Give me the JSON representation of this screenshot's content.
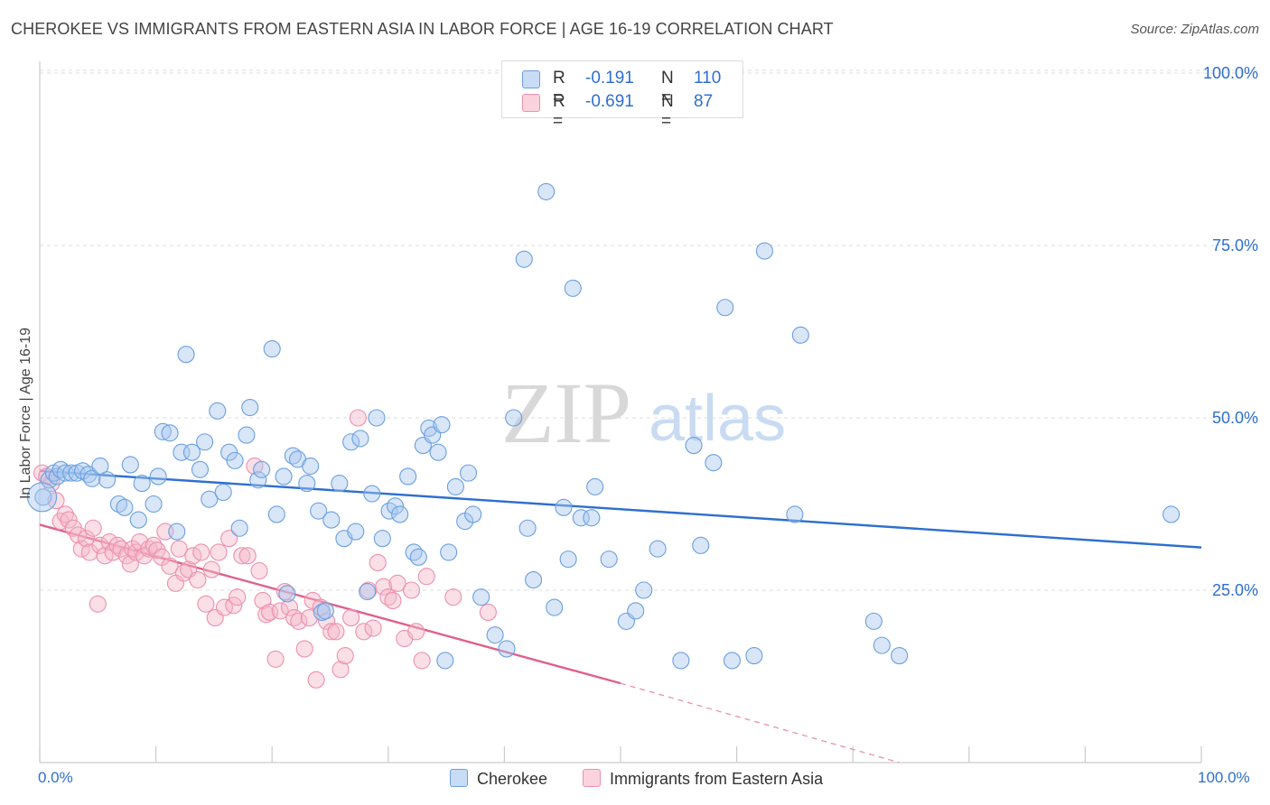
{
  "header": {
    "title": "CHEROKEE VS IMMIGRANTS FROM EASTERN ASIA IN LABOR FORCE | AGE 16-19 CORRELATION CHART",
    "source": "Source: ZipAtlas.com"
  },
  "watermark": {
    "zip": "ZIP",
    "atlas": "atlas"
  },
  "legend": {
    "rows": [
      {
        "r_label": "R =",
        "r_value": "-0.191",
        "n_label": "N =",
        "n_value": "110",
        "color": "#a9c8f0"
      },
      {
        "r_label": "R =",
        "r_value": "-0.691",
        "n_label": "N =",
        "n_value": "87",
        "color": "#f5b7ca"
      }
    ]
  },
  "chart_data": {
    "type": "scatter",
    "ylabel": "In Labor Force | Age 16-19",
    "x_tick_labels": [
      "0.0%",
      "100.0%"
    ],
    "y_tick_labels": [
      "25.0%",
      "50.0%",
      "75.0%",
      "100.0%"
    ],
    "y_ticks": [
      25,
      50,
      75,
      100
    ],
    "xlim": [
      0,
      100
    ],
    "ylim": [
      0,
      105
    ],
    "grid": true,
    "legend_position": "top-center",
    "series": [
      {
        "name": "Cherokee",
        "color": "#6a9fe0",
        "fill": "#a9c8f0",
        "trend": {
          "x": [
            0,
            100
          ],
          "y": [
            42.3,
            31.2
          ],
          "color": "#2e6fd0"
        },
        "points": [
          [
            0.3,
            38.5
          ],
          [
            0.8,
            41
          ],
          [
            1.2,
            42
          ],
          [
            1.5,
            41.5
          ],
          [
            1.8,
            42.5
          ],
          [
            2.2,
            42
          ],
          [
            2.7,
            42
          ],
          [
            3.2,
            42
          ],
          [
            3.7,
            42.3
          ],
          [
            4.2,
            41.8
          ],
          [
            4.5,
            41.2
          ],
          [
            5.2,
            43
          ],
          [
            5.8,
            41
          ],
          [
            6.8,
            37.5
          ],
          [
            7.3,
            37
          ],
          [
            7.8,
            43.2
          ],
          [
            8.5,
            35.2
          ],
          [
            8.8,
            40.5
          ],
          [
            9.8,
            37.5
          ],
          [
            10.2,
            41.5
          ],
          [
            10.6,
            48
          ],
          [
            11.2,
            47.8
          ],
          [
            11.8,
            33.5
          ],
          [
            12.2,
            45
          ],
          [
            12.6,
            59.2
          ],
          [
            13.1,
            45
          ],
          [
            13.8,
            42.5
          ],
          [
            14.2,
            46.5
          ],
          [
            14.6,
            38.2
          ],
          [
            15.3,
            51
          ],
          [
            15.8,
            39.2
          ],
          [
            16.3,
            45
          ],
          [
            16.8,
            43.8
          ],
          [
            17.2,
            34
          ],
          [
            17.8,
            47.5
          ],
          [
            18.1,
            51.5
          ],
          [
            18.8,
            41
          ],
          [
            19.1,
            42.5
          ],
          [
            20.0,
            60
          ],
          [
            20.4,
            36
          ],
          [
            21.0,
            41.5
          ],
          [
            21.3,
            24.5
          ],
          [
            21.8,
            44.5
          ],
          [
            22.2,
            44
          ],
          [
            23,
            40.5
          ],
          [
            23.3,
            43
          ],
          [
            24,
            36.5
          ],
          [
            24.3,
            21.8
          ],
          [
            24.6,
            22
          ],
          [
            25.1,
            35.2
          ],
          [
            25.8,
            40.5
          ],
          [
            26.2,
            32.5
          ],
          [
            26.8,
            46.5
          ],
          [
            27.2,
            33.5
          ],
          [
            27.6,
            47
          ],
          [
            28.2,
            24.8
          ],
          [
            28.6,
            39
          ],
          [
            29.0,
            50
          ],
          [
            29.5,
            32.5
          ],
          [
            30.1,
            36.5
          ],
          [
            30.6,
            37.2
          ],
          [
            31.0,
            36.0
          ],
          [
            31.7,
            41.5
          ],
          [
            32.2,
            30.5
          ],
          [
            32.6,
            29.8
          ],
          [
            33.0,
            46
          ],
          [
            33.5,
            48.5
          ],
          [
            33.8,
            47.5
          ],
          [
            34.3,
            45
          ],
          [
            34.6,
            49
          ],
          [
            34.9,
            14.8
          ],
          [
            35.2,
            30.5
          ],
          [
            35.8,
            40
          ],
          [
            36.6,
            35
          ],
          [
            36.9,
            42
          ],
          [
            37.3,
            36
          ],
          [
            38.0,
            24
          ],
          [
            39.2,
            18.5
          ],
          [
            40.2,
            16.5
          ],
          [
            40.8,
            50
          ],
          [
            41.7,
            73
          ],
          [
            42.0,
            34
          ],
          [
            42.5,
            26.5
          ],
          [
            43.6,
            82.8
          ],
          [
            44.3,
            22.5
          ],
          [
            45.1,
            37
          ],
          [
            45.5,
            29.5
          ],
          [
            45.9,
            68.8
          ],
          [
            46.6,
            35.5
          ],
          [
            47.5,
            35.5
          ],
          [
            47.8,
            40
          ],
          [
            49.0,
            29.5
          ],
          [
            50.5,
            20.5
          ],
          [
            51.3,
            22
          ],
          [
            52,
            25
          ],
          [
            53.2,
            31
          ],
          [
            55.2,
            14.8
          ],
          [
            56.3,
            46
          ],
          [
            56.9,
            31.5
          ],
          [
            58,
            43.5
          ],
          [
            59.0,
            66
          ],
          [
            59.6,
            14.8
          ],
          [
            61.5,
            15.5
          ],
          [
            62.4,
            74.2
          ],
          [
            65,
            36
          ],
          [
            65.5,
            62
          ],
          [
            71.8,
            20.5
          ],
          [
            72.5,
            17
          ],
          [
            74,
            15.5
          ],
          [
            97.4,
            36
          ]
        ]
      },
      {
        "name": "Immigrants from Eastern Asia",
        "color": "#ee8fae",
        "fill": "#f5b7ca",
        "trend": {
          "x": [
            0,
            50
          ],
          "y": [
            34.5,
            11.5
          ],
          "color": "#e0608c"
        },
        "trend_dashed": {
          "x": [
            50,
            74
          ],
          "y": [
            11.5,
            0
          ],
          "color": "#e79ab4"
        },
        "points": [
          [
            0.2,
            42
          ],
          [
            0.6,
            41.5
          ],
          [
            1.0,
            40.5
          ],
          [
            1.4,
            38
          ],
          [
            1.8,
            35
          ],
          [
            2.2,
            36
          ],
          [
            2.5,
            35.2
          ],
          [
            2.9,
            34
          ],
          [
            3.3,
            33
          ],
          [
            3.6,
            31
          ],
          [
            4.0,
            32.5
          ],
          [
            4.3,
            30.5
          ],
          [
            4.6,
            34
          ],
          [
            5.0,
            23
          ],
          [
            5.2,
            31.5
          ],
          [
            5.6,
            30
          ],
          [
            6.0,
            32
          ],
          [
            6.3,
            30.5
          ],
          [
            6.7,
            31.5
          ],
          [
            7.0,
            31
          ],
          [
            7.5,
            30
          ],
          [
            7.8,
            28.8
          ],
          [
            8.0,
            31
          ],
          [
            8.3,
            30.5
          ],
          [
            8.6,
            32
          ],
          [
            9.0,
            30
          ],
          [
            9.4,
            31
          ],
          [
            9.8,
            31.5
          ],
          [
            10.1,
            30.8
          ],
          [
            10.5,
            29.8
          ],
          [
            10.8,
            33.5
          ],
          [
            11.2,
            28.5
          ],
          [
            11.7,
            26
          ],
          [
            12.0,
            31
          ],
          [
            12.4,
            27.5
          ],
          [
            12.8,
            28
          ],
          [
            13.2,
            30
          ],
          [
            13.6,
            26.5
          ],
          [
            13.9,
            30.5
          ],
          [
            14.3,
            23
          ],
          [
            14.8,
            28
          ],
          [
            15.1,
            21
          ],
          [
            15.4,
            30.5
          ],
          [
            15.9,
            22.5
          ],
          [
            16.3,
            32.5
          ],
          [
            16.7,
            22.8
          ],
          [
            17.0,
            24
          ],
          [
            17.4,
            30
          ],
          [
            17.9,
            30
          ],
          [
            18.5,
            43
          ],
          [
            18.9,
            27.8
          ],
          [
            19.2,
            23.5
          ],
          [
            19.5,
            21.5
          ],
          [
            19.8,
            21.8
          ],
          [
            20.3,
            15
          ],
          [
            20.7,
            22
          ],
          [
            21.1,
            24.8
          ],
          [
            21.5,
            22.5
          ],
          [
            21.9,
            21
          ],
          [
            22.3,
            20.5
          ],
          [
            22.8,
            16.5
          ],
          [
            23.2,
            21
          ],
          [
            23.5,
            23.5
          ],
          [
            23.8,
            12
          ],
          [
            24.2,
            22.5
          ],
          [
            24.7,
            20.5
          ],
          [
            25.1,
            19
          ],
          [
            25.5,
            19
          ],
          [
            25.9,
            13.5
          ],
          [
            26.3,
            15.5
          ],
          [
            26.8,
            21
          ],
          [
            27.4,
            50
          ],
          [
            27.9,
            19
          ],
          [
            28.3,
            25
          ],
          [
            28.7,
            19.5
          ],
          [
            29.1,
            29
          ],
          [
            29.6,
            25.5
          ],
          [
            30.0,
            24
          ],
          [
            30.4,
            23.5
          ],
          [
            30.8,
            26
          ],
          [
            31.4,
            18
          ],
          [
            32.0,
            25
          ],
          [
            32.4,
            19
          ],
          [
            32.9,
            14.8
          ],
          [
            33.3,
            27
          ],
          [
            35.6,
            24
          ],
          [
            38.6,
            21.8
          ]
        ]
      }
    ]
  }
}
